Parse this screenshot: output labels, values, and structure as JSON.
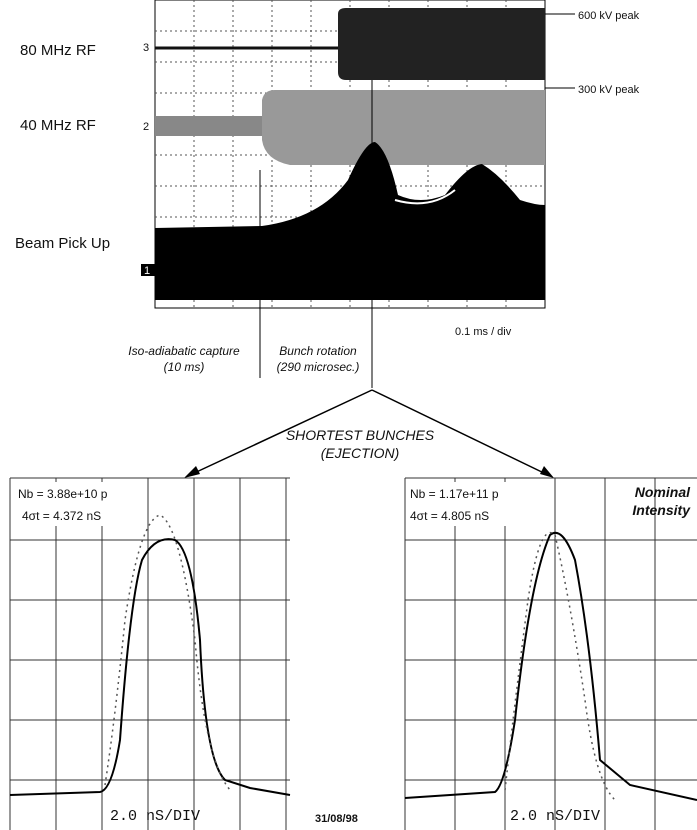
{
  "top_scope": {
    "labels": {
      "rf80": "80 MHz RF",
      "rf40": "40 MHz RF",
      "beam": "Beam Pick Up"
    },
    "channels": [
      "3",
      "2",
      "1"
    ],
    "annotations": {
      "peak600": "600 kV peak",
      "peak300": "300 kV peak",
      "timebase": "0.1 ms / div"
    }
  },
  "phases": [
    {
      "name": "Iso-adiabatic capture",
      "duration": "(10 ms)"
    },
    {
      "name": "Bunch rotation",
      "duration": "(290 microsec.)"
    }
  ],
  "callout": {
    "line1": "SHORTEST BUNCHES",
    "line2": "(EJECTION)"
  },
  "panels": [
    {
      "nb": "Nb = 3.88e+10 p",
      "width": "4σt =  4.372 nS",
      "timebase": "2.0 nS/DIV"
    },
    {
      "nb": "Nb = 1.17e+11 p",
      "width": "4σt =  4.805 nS",
      "timebase": "2.0 nS/DIV",
      "tag": [
        "Nominal",
        "Intensity"
      ]
    }
  ],
  "date": "31/08/98"
}
